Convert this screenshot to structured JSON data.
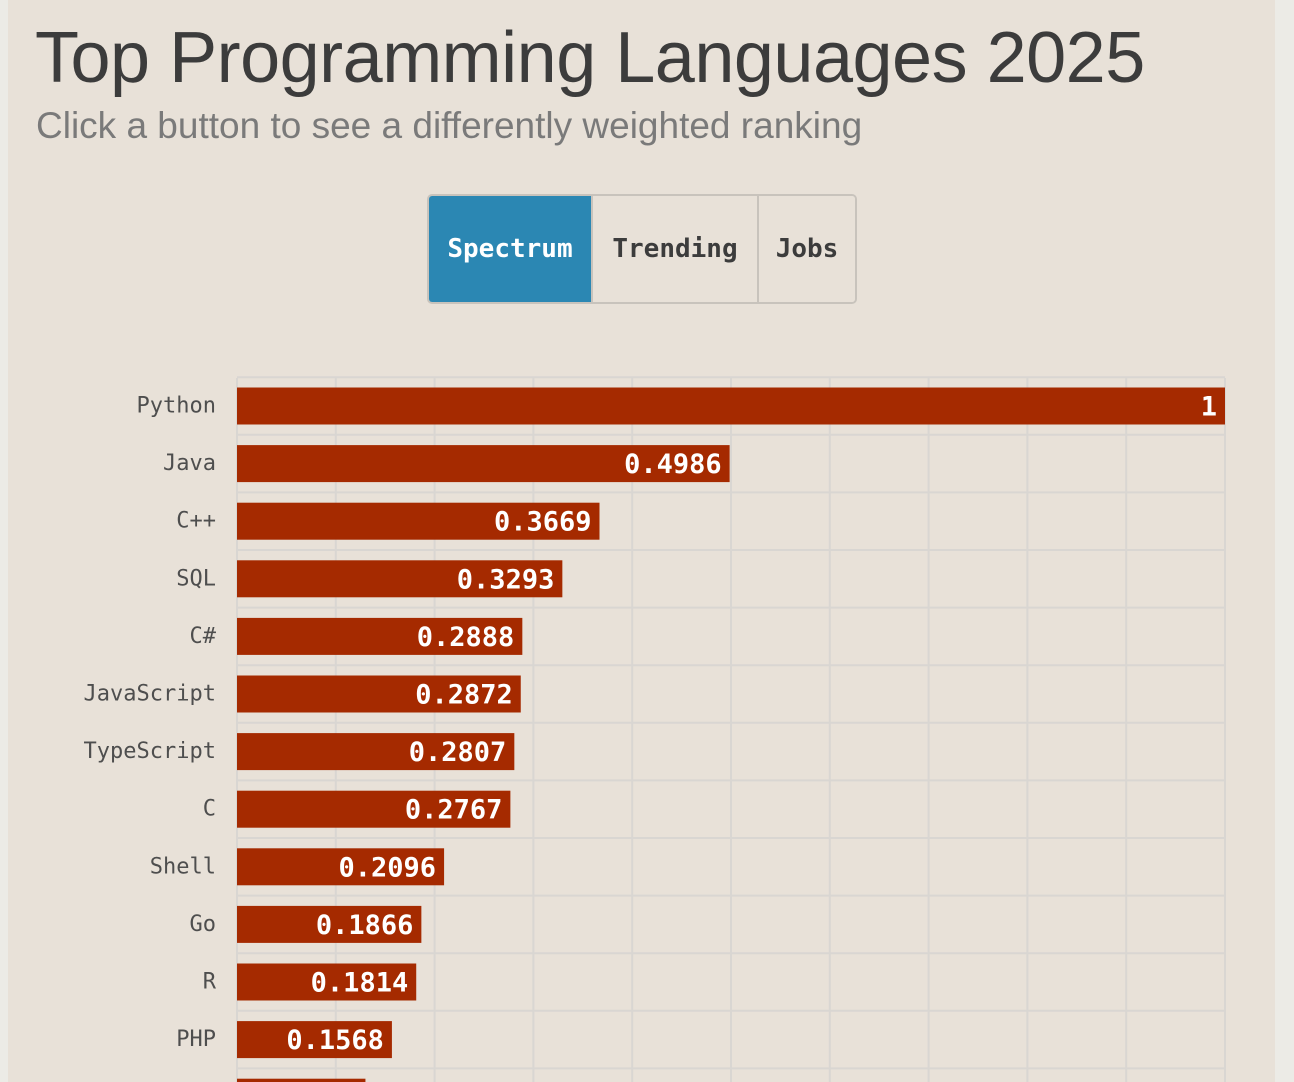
{
  "header": {
    "title": "Top Programming Languages 2025",
    "subtitle": "Click a button to see a differently weighted ranking"
  },
  "buttons": [
    {
      "label": "Spectrum",
      "active": true
    },
    {
      "label": "Trending",
      "active": false
    },
    {
      "label": "Jobs",
      "active": false
    }
  ],
  "colors": {
    "bar": "#a52a00",
    "active_button": "#2b87b3",
    "gridline": "#d9d6d2"
  },
  "chart_data": {
    "type": "bar",
    "orientation": "horizontal",
    "categories": [
      "Python",
      "Java",
      "C++",
      "SQL",
      "C#",
      "JavaScript",
      "TypeScript",
      "C",
      "Shell",
      "Go",
      "R",
      "PHP"
    ],
    "values": [
      1,
      0.4986,
      0.3669,
      0.3293,
      0.2888,
      0.2872,
      0.2807,
      0.2767,
      0.2096,
      0.1866,
      0.1814,
      0.1568
    ],
    "value_labels": [
      "1",
      "0.4986",
      "0.3669",
      "0.3293",
      "0.2888",
      "0.2872",
      "0.2807",
      "0.2767",
      "0.2096",
      "0.1866",
      "0.1814",
      "0.1568"
    ],
    "partial_next_value": 0.13,
    "xlim": [
      0,
      1
    ],
    "grid": true,
    "title": "Top Programming Languages 2025"
  }
}
